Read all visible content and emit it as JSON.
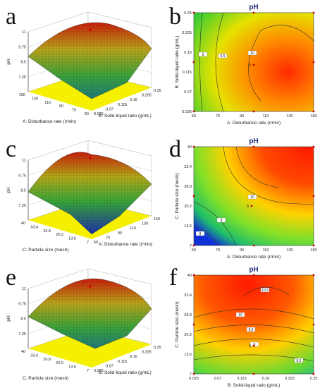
{
  "panel_labels": [
    "a",
    "b",
    "c",
    "d",
    "e",
    "f"
  ],
  "chart_data": [
    {
      "panel": "a",
      "type": "surface3d",
      "title": "",
      "zlabel": "pH",
      "z_ticks": [
        "7.25",
        "8.5",
        "9.75",
        "11"
      ],
      "x_label": "A: Disturbance rate (r/min)",
      "x_ticks": [
        "50",
        "70",
        "90",
        "110",
        "130",
        "150"
      ],
      "y_label": "B: Solid-liquid ratio (g/mL)",
      "y_ticks": [
        "0.025",
        "0.07",
        "0.115",
        "0.16",
        "0.205",
        "0.25"
      ],
      "x_range": [
        50,
        150
      ],
      "y_range": [
        0.025,
        0.25
      ],
      "z_range": [
        6,
        11
      ]
    },
    {
      "panel": "b",
      "type": "contour",
      "title": "pH",
      "x_label": "A: Disturbance rate (r/min)",
      "x_ticks": [
        "50",
        "70",
        "90",
        "110",
        "130",
        "150"
      ],
      "y_label": "B: Solid-liquid ratio (g/mL)",
      "y_ticks": [
        "0.025",
        "0.07",
        "0.115",
        "0.16",
        "0.205",
        "0.25"
      ],
      "x_range": [
        50,
        150
      ],
      "y_range": [
        0.025,
        0.25
      ],
      "contour_labels": [
        "9",
        "9.5",
        "10"
      ],
      "center_label": "5"
    },
    {
      "panel": "c",
      "type": "surface3d",
      "title": "",
      "zlabel": "pH",
      "z_ticks": [
        "7.25",
        "8.5",
        "9.75",
        "11"
      ],
      "x_label": "C: Particle size (mesh)",
      "x_ticks": [
        "7",
        "13.6",
        "20.2",
        "26.8",
        "33.4",
        "40"
      ],
      "y_label": "A: Disturbance rate (r/min)",
      "y_ticks": [
        "50",
        "70",
        "90",
        "110",
        "130",
        "150"
      ],
      "x_range": [
        7,
        40
      ],
      "y_range": [
        50,
        150
      ],
      "z_range": [
        6,
        11
      ]
    },
    {
      "panel": "d",
      "type": "contour",
      "title": "pH",
      "x_label": "A: Disturbance rate (r/min)",
      "x_ticks": [
        "50",
        "70",
        "90",
        "110",
        "130",
        "150"
      ],
      "y_label": "C: Particle size (mesh)",
      "y_ticks": [
        "7",
        "13.6",
        "20.2",
        "26.8",
        "33.4",
        "40"
      ],
      "x_range": [
        50,
        150
      ],
      "y_range": [
        7,
        40
      ],
      "contour_labels": [
        "8",
        "9",
        "10"
      ],
      "center_label": "5"
    },
    {
      "panel": "e",
      "type": "surface3d",
      "title": "",
      "zlabel": "pH",
      "z_ticks": [
        "7.25",
        "8.5",
        "9.75",
        "11"
      ],
      "x_label": "C: Particle size (mesh)",
      "x_ticks": [
        "7",
        "13.6",
        "20.2",
        "26.8",
        "33.4",
        "40"
      ],
      "y_label": "B: Solid-liquid ratio (g/mL)",
      "y_ticks": [
        "0.025",
        "0.07",
        "0.115",
        "0.16",
        "0.205",
        "0.25"
      ],
      "x_range": [
        7,
        40
      ],
      "y_range": [
        0.025,
        0.25
      ],
      "z_range": [
        6,
        11
      ]
    },
    {
      "panel": "f",
      "type": "contour",
      "title": "pH",
      "x_label": "B: Solid-liquid ratio (g/mL)",
      "x_ticks": [
        "0.025",
        "0.07",
        "0.115",
        "0.16",
        "0.205",
        "0.25"
      ],
      "y_label": "C: Particle size (mesh)",
      "y_ticks": [
        "7",
        "13.6",
        "20.2",
        "26.8",
        "33.4",
        "40"
      ],
      "x_range": [
        0.025,
        0.25
      ],
      "y_range": [
        7,
        40
      ],
      "contour_labels": [
        "8.5",
        "9",
        "9.5",
        "10",
        "10.5"
      ],
      "center_label": "5"
    }
  ]
}
